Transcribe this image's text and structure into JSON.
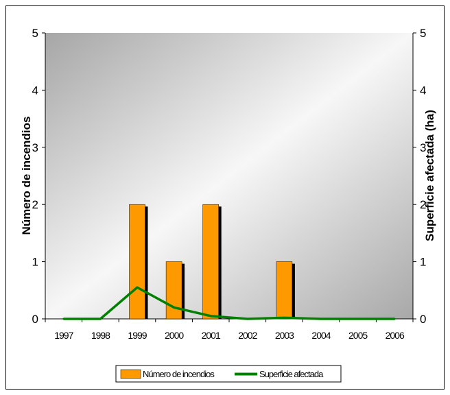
{
  "chart_data": {
    "type": "bar",
    "categories": [
      "1997",
      "1998",
      "1999",
      "2000",
      "2001",
      "2002",
      "2003",
      "2004",
      "2005",
      "2006"
    ],
    "series": [
      {
        "name": "Número de incendios",
        "type": "bar",
        "axis": "left",
        "color": "#ff9900",
        "values": [
          0,
          0,
          2,
          1,
          2,
          0,
          1,
          0,
          0,
          0
        ]
      },
      {
        "name": "Superficie afectada",
        "type": "line",
        "axis": "right",
        "color": "#008000",
        "values": [
          0,
          0,
          0.55,
          0.2,
          0.05,
          0,
          0.02,
          0,
          0,
          0
        ]
      }
    ],
    "ylabel": "Número de incendios",
    "y2label": "Superficie afectada (ha)",
    "ylim": [
      0,
      5
    ],
    "y2lim": [
      0,
      5
    ],
    "yticks": [
      "0",
      "1",
      "2",
      "3",
      "4",
      "5"
    ],
    "y2ticks": [
      "0",
      "1",
      "2",
      "3",
      "4",
      "5"
    ],
    "legend_position": "bottom"
  }
}
